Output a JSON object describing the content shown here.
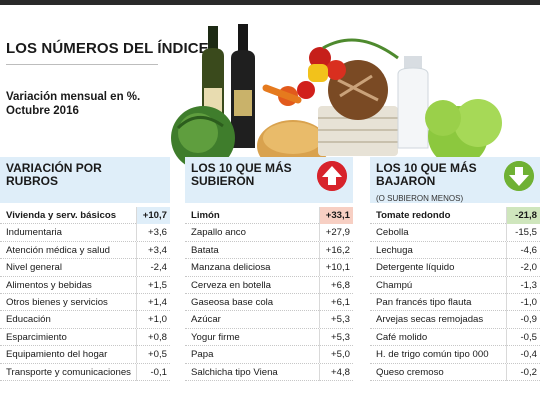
{
  "title": "LOS NÚMEROS DEL ÍNDICE",
  "subtitle": "Variación mensual en %. Octubre 2016",
  "colors": {
    "header_bg": "#dfeef9",
    "up_badge": "#d7232b",
    "down_badge": "#6fb134",
    "up_highlight": "#f7cfc3",
    "down_highlight": "#cfe6bd"
  },
  "rubros": {
    "title": "VARIACIÓN POR RUBROS",
    "rows": [
      {
        "label": "Vivienda y serv. básicos",
        "value": "+10,7"
      },
      {
        "label": "Indumentaria",
        "value": "+3,6"
      },
      {
        "label": "Atención médica y salud",
        "value": "+3,4"
      },
      {
        "label": "Nivel general",
        "value": "-2,4"
      },
      {
        "label": "Alimentos y bebidas",
        "value": "+1,5"
      },
      {
        "label": "Otros bienes y servicios",
        "value": "+1,4"
      },
      {
        "label": "Educación",
        "value": "+1,0"
      },
      {
        "label": "Esparcimiento",
        "value": "+0,8"
      },
      {
        "label": "Equipamiento del hogar",
        "value": "+0,5"
      },
      {
        "label": "Transporte y comunicaciones",
        "value": "-0,1"
      }
    ]
  },
  "subieron": {
    "title": "LOS 10 QUE MÁS SUBIERON",
    "icon": "arrow-up-icon",
    "rows": [
      {
        "label": "Limón",
        "value": "+33,1"
      },
      {
        "label": "Zapallo anco",
        "value": "+27,9"
      },
      {
        "label": "Batata",
        "value": "+16,2"
      },
      {
        "label": "Manzana deliciosa",
        "value": "+10,1"
      },
      {
        "label": "Cerveza en botella",
        "value": "+6,8"
      },
      {
        "label": "Gaseosa base cola",
        "value": "+6,1"
      },
      {
        "label": "Azúcar",
        "value": "+5,3"
      },
      {
        "label": "Yogur firme",
        "value": "+5,3"
      },
      {
        "label": "Papa",
        "value": "+5,0"
      },
      {
        "label": "Salchicha tipo Viena",
        "value": "+4,8"
      }
    ]
  },
  "bajaron": {
    "title": "LOS 10 QUE MÁS BAJARON",
    "note": "(O SUBIERON MENOS)",
    "icon": "arrow-down-icon",
    "rows": [
      {
        "label": "Tomate redondo",
        "value": "-21,8"
      },
      {
        "label": "Cebolla",
        "value": "-15,5"
      },
      {
        "label": "Lechuga",
        "value": "-4,6"
      },
      {
        "label": "Detergente líquido",
        "value": "-2,0"
      },
      {
        "label": "Champú",
        "value": "-1,3"
      },
      {
        "label": "Pan francés tipo flauta",
        "value": "-1,0"
      },
      {
        "label": "Arvejas secas remojadas",
        "value": "-0,9"
      },
      {
        "label": "Café molido",
        "value": "-0,5"
      },
      {
        "label": "H. de trigo común tipo 000",
        "value": "-0,4"
      },
      {
        "label": "Queso cremoso",
        "value": "-0,2"
      }
    ]
  }
}
